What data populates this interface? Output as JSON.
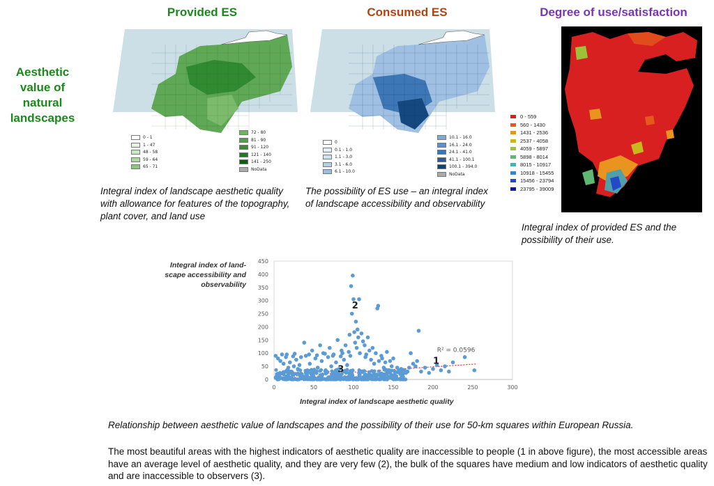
{
  "side_title": "Aesthetic value of natural landscapes",
  "panels": {
    "provided": {
      "title": "Provided ES",
      "title_color": "#1a8a1a",
      "legend_left": [
        "0 - 1",
        "1 - 47",
        "48 - 58",
        "59 - 64",
        "65 - 71"
      ],
      "legend_right": [
        "72 - 80",
        "81 - 90",
        "91 - 120",
        "121 - 140",
        "141 - 250",
        "NoData"
      ],
      "colors_left": [
        "#ffffff",
        "#e8f4e3",
        "#cbe7c1",
        "#aed79f",
        "#8ec67e"
      ],
      "colors_right": [
        "#6db65f",
        "#4ea444",
        "#33902f",
        "#1f7a22",
        "#0e5e17",
        "#aaaaaa"
      ],
      "caption": "Integral index of landscape aesthetic quality with allowance for features of the topography, plant cover, and land use"
    },
    "consumed": {
      "title": "Consumed ES",
      "title_color": "#b3440e",
      "legend_left": [
        "0",
        "0.1 - 1.0",
        "1.1 - 3.0",
        "3.1 - 6.0",
        "6.1 - 10.0"
      ],
      "legend_right": [
        "10.1 - 16.0",
        "16.1 - 24.0",
        "24.1 - 41.0",
        "41.1 - 100.1",
        "100.1 - 394.0",
        "NoData"
      ],
      "colors_left": [
        "#ffffff",
        "#e6eff8",
        "#cfe0f1",
        "#b5cfe8",
        "#9dbfdf"
      ],
      "colors_right": [
        "#7eaad6",
        "#5a91c8",
        "#3a77b7",
        "#215da0",
        "#0d4283",
        "#aaaaaa"
      ],
      "caption": "The possibility of ES use – an integral index of landscape accessibility and observability"
    },
    "degree": {
      "title": "Degree of use/satisfaction",
      "title_color": "#7a35b5",
      "legend": [
        "0 - 559",
        "560 - 1430",
        "1431 - 2536",
        "2537 - 4058",
        "4059 - 5897",
        "5898 - 8014",
        "8015 - 10917",
        "10918 - 15455",
        "15456 - 23794",
        "23795 - 39009"
      ],
      "colors": [
        "#e01b1b",
        "#e5591f",
        "#e8941f",
        "#c8b820",
        "#9cc23a",
        "#5fb872",
        "#3fb5b0",
        "#2f86d6",
        "#2349c9",
        "#10189e"
      ],
      "caption": "Integral index of provided ES and the possibility of their use."
    }
  },
  "scatter": {
    "bottom_caption": "Relationship between aesthetic value of landscapes and the possibility of their use for 50-km squares within European Russia.",
    "summary": "The most beautiful areas with the highest indicators of aesthetic quality are inaccessible to people (1 in above figure), the most accessible areas have an average level of aesthetic quality, and they are very few (2), the bulk of the squares have medium and low indicators of aesthetic quality and are inaccessible to observers (3)."
  },
  "chart_data": {
    "type": "scatter",
    "xlabel": "Integral index of landscape aesthetic quality",
    "ylabel": "Integral index of land-scape accessibility and observability",
    "xlim": [
      0,
      300
    ],
    "ylim": [
      0,
      450
    ],
    "xticks": [
      0,
      50,
      100,
      150,
      200,
      250,
      300
    ],
    "yticks": [
      0,
      50,
      100,
      150,
      200,
      250,
      300,
      350,
      400,
      450
    ],
    "point_color": "#5b9bd5",
    "trendline": {
      "intercept": 8,
      "slope": 0.2,
      "color": "#e03030",
      "label": "R² = 0.0596",
      "label_x": 205,
      "label_y": 105
    },
    "annotations": [
      {
        "text": "1",
        "x": 200,
        "y": 60
      },
      {
        "text": "2",
        "x": 98,
        "y": 270
      },
      {
        "text": "3",
        "x": 80,
        "y": 28
      }
    ],
    "points": [
      [
        2,
        90
      ],
      [
        5,
        80
      ],
      [
        8,
        70
      ],
      [
        10,
        95
      ],
      [
        12,
        60
      ],
      [
        15,
        85
      ],
      [
        18,
        45
      ],
      [
        20,
        65
      ],
      [
        22,
        30
      ],
      [
        25,
        50
      ],
      [
        28,
        75
      ],
      [
        30,
        40
      ],
      [
        32,
        55
      ],
      [
        35,
        20
      ],
      [
        38,
        140
      ],
      [
        40,
        90
      ],
      [
        42,
        35
      ],
      [
        45,
        60
      ],
      [
        48,
        110
      ],
      [
        50,
        25
      ],
      [
        52,
        80
      ],
      [
        55,
        45
      ],
      [
        58,
        130
      ],
      [
        60,
        70
      ],
      [
        62,
        100
      ],
      [
        65,
        35
      ],
      [
        68,
        85
      ],
      [
        70,
        120
      ],
      [
        72,
        50
      ],
      [
        75,
        95
      ],
      [
        78,
        65
      ],
      [
        80,
        150
      ],
      [
        82,
        40
      ],
      [
        85,
        110
      ],
      [
        88,
        75
      ],
      [
        90,
        130
      ],
      [
        92,
        55
      ],
      [
        95,
        170
      ],
      [
        96,
        90
      ],
      [
        97,
        355
      ],
      [
        98,
        250
      ],
      [
        99,
        395
      ],
      [
        100,
        305
      ],
      [
        101,
        180
      ],
      [
        102,
        140
      ],
      [
        103,
        220
      ],
      [
        104,
        120
      ],
      [
        105,
        190
      ],
      [
        106,
        160
      ],
      [
        107,
        305
      ],
      [
        108,
        100
      ],
      [
        110,
        175
      ],
      [
        112,
        145
      ],
      [
        114,
        130
      ],
      [
        115,
        85
      ],
      [
        118,
        160
      ],
      [
        120,
        110
      ],
      [
        122,
        75
      ],
      [
        124,
        120
      ],
      [
        126,
        60
      ],
      [
        128,
        100
      ],
      [
        130,
        270
      ],
      [
        131,
        280
      ],
      [
        132,
        70
      ],
      [
        135,
        90
      ],
      [
        138,
        45
      ],
      [
        140,
        65
      ],
      [
        142,
        105
      ],
      [
        145,
        35
      ],
      [
        148,
        50
      ],
      [
        150,
        80
      ],
      [
        152,
        30
      ],
      [
        155,
        45
      ],
      [
        158,
        25
      ],
      [
        160,
        40
      ],
      [
        162,
        20
      ],
      [
        164,
        35
      ],
      [
        166,
        25
      ],
      [
        168,
        30
      ],
      [
        170,
        45
      ],
      [
        172,
        100
      ],
      [
        175,
        60
      ],
      [
        178,
        50
      ],
      [
        180,
        70
      ],
      [
        182,
        185
      ],
      [
        185,
        30
      ],
      [
        190,
        45
      ],
      [
        195,
        25
      ],
      [
        200,
        40
      ],
      [
        205,
        55
      ],
      [
        210,
        35
      ],
      [
        215,
        50
      ],
      [
        220,
        30
      ],
      [
        225,
        65
      ],
      [
        240,
        85
      ],
      [
        252,
        35
      ],
      [
        16,
        95
      ],
      [
        26,
        98
      ],
      [
        44,
        95
      ],
      [
        64,
        98
      ],
      [
        74,
        90
      ],
      [
        84,
        88
      ],
      [
        34,
        85
      ],
      [
        54,
        92
      ],
      [
        24,
        88
      ],
      [
        86,
        100
      ],
      [
        94,
        105
      ],
      [
        116,
        95
      ],
      [
        136,
        80
      ],
      [
        146,
        70
      ]
    ]
  }
}
